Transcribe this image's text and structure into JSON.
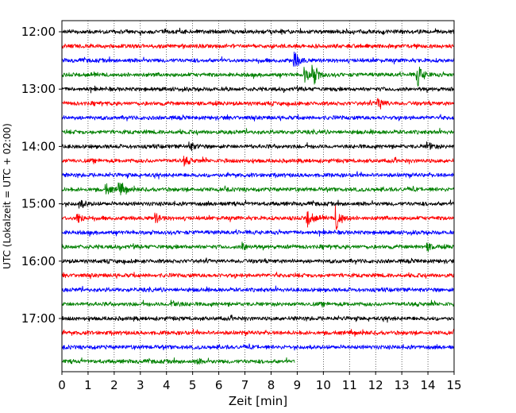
{
  "chart_data": {
    "type": "line",
    "title": "",
    "xlabel": "Zeit  [min]",
    "ylabel": "UTC (Lokalzeit = UTC + 02:00)",
    "xlim": [
      0,
      15
    ],
    "x_ticks": [
      0,
      1,
      2,
      3,
      4,
      5,
      6,
      7,
      8,
      9,
      10,
      11,
      12,
      13,
      14,
      15
    ],
    "y_ticks": [
      "12:00",
      "13:00",
      "14:00",
      "15:00",
      "16:00",
      "17:00"
    ],
    "grid": "vertical dotted lines at each minute",
    "trace_interval_min": 15,
    "start_time": "12:00",
    "colors": [
      "#000000",
      "#ff0000",
      "#0000ff",
      "#008000"
    ],
    "series": [
      {
        "time": "12:00",
        "color": "#000000",
        "end_min": 15,
        "events": []
      },
      {
        "time": "12:15",
        "color": "#ff0000",
        "end_min": 15,
        "events": []
      },
      {
        "time": "12:30",
        "color": "#0000ff",
        "end_min": 15,
        "events": [
          {
            "at": 8.9,
            "amp": 0.55
          }
        ]
      },
      {
        "time": "12:45",
        "color": "#008000",
        "end_min": 15,
        "events": [
          {
            "at": 9.3,
            "amp": 0.45
          },
          {
            "at": 9.6,
            "amp": 0.7
          },
          {
            "at": 13.6,
            "amp": 0.75
          }
        ]
      },
      {
        "time": "13:00",
        "color": "#000000",
        "end_min": 15,
        "events": []
      },
      {
        "time": "13:15",
        "color": "#ff0000",
        "end_min": 15,
        "events": [
          {
            "at": 12.1,
            "amp": 0.45
          }
        ]
      },
      {
        "time": "13:30",
        "color": "#0000ff",
        "end_min": 15,
        "events": []
      },
      {
        "time": "13:45",
        "color": "#008000",
        "end_min": 15,
        "events": []
      },
      {
        "time": "14:00",
        "color": "#000000",
        "end_min": 15,
        "events": [
          {
            "at": 4.9,
            "amp": 0.25
          },
          {
            "at": 14.0,
            "amp": 0.25
          }
        ]
      },
      {
        "time": "14:15",
        "color": "#ff0000",
        "end_min": 15,
        "events": [
          {
            "at": 4.7,
            "amp": 0.25
          }
        ]
      },
      {
        "time": "14:30",
        "color": "#0000ff",
        "end_min": 15,
        "events": []
      },
      {
        "time": "14:45",
        "color": "#008000",
        "end_min": 15,
        "events": [
          {
            "at": 1.7,
            "amp": 0.3
          },
          {
            "at": 2.2,
            "amp": 0.45
          }
        ]
      },
      {
        "time": "15:00",
        "color": "#000000",
        "end_min": 15,
        "events": [
          {
            "at": 0.7,
            "amp": 0.25
          }
        ]
      },
      {
        "time": "15:15",
        "color": "#ff0000",
        "end_min": 15,
        "events": [
          {
            "at": 0.6,
            "amp": 0.35
          },
          {
            "at": 3.6,
            "amp": 0.25
          },
          {
            "at": 9.4,
            "amp": 0.6
          },
          {
            "at": 10.5,
            "amp": 0.8
          }
        ]
      },
      {
        "time": "15:30",
        "color": "#0000ff",
        "end_min": 15,
        "events": []
      },
      {
        "time": "15:45",
        "color": "#008000",
        "end_min": 15,
        "events": [
          {
            "at": 6.9,
            "amp": 0.25
          },
          {
            "at": 14.0,
            "amp": 0.2
          }
        ]
      },
      {
        "time": "16:00",
        "color": "#000000",
        "end_min": 15,
        "events": []
      },
      {
        "time": "16:15",
        "color": "#ff0000",
        "end_min": 15,
        "events": []
      },
      {
        "time": "16:30",
        "color": "#0000ff",
        "end_min": 15,
        "events": []
      },
      {
        "time": "16:45",
        "color": "#008000",
        "end_min": 15,
        "events": [
          {
            "at": 4.2,
            "amp": 0.3
          }
        ]
      },
      {
        "time": "17:00",
        "color": "#000000",
        "end_min": 15,
        "events": []
      },
      {
        "time": "17:15",
        "color": "#ff0000",
        "end_min": 15,
        "events": []
      },
      {
        "time": "17:30",
        "color": "#0000ff",
        "end_min": 15,
        "events": []
      },
      {
        "time": "17:45",
        "color": "#008000",
        "end_min": 8.9,
        "events": [
          {
            "at": 5.2,
            "amp": 0.12
          }
        ]
      }
    ]
  }
}
